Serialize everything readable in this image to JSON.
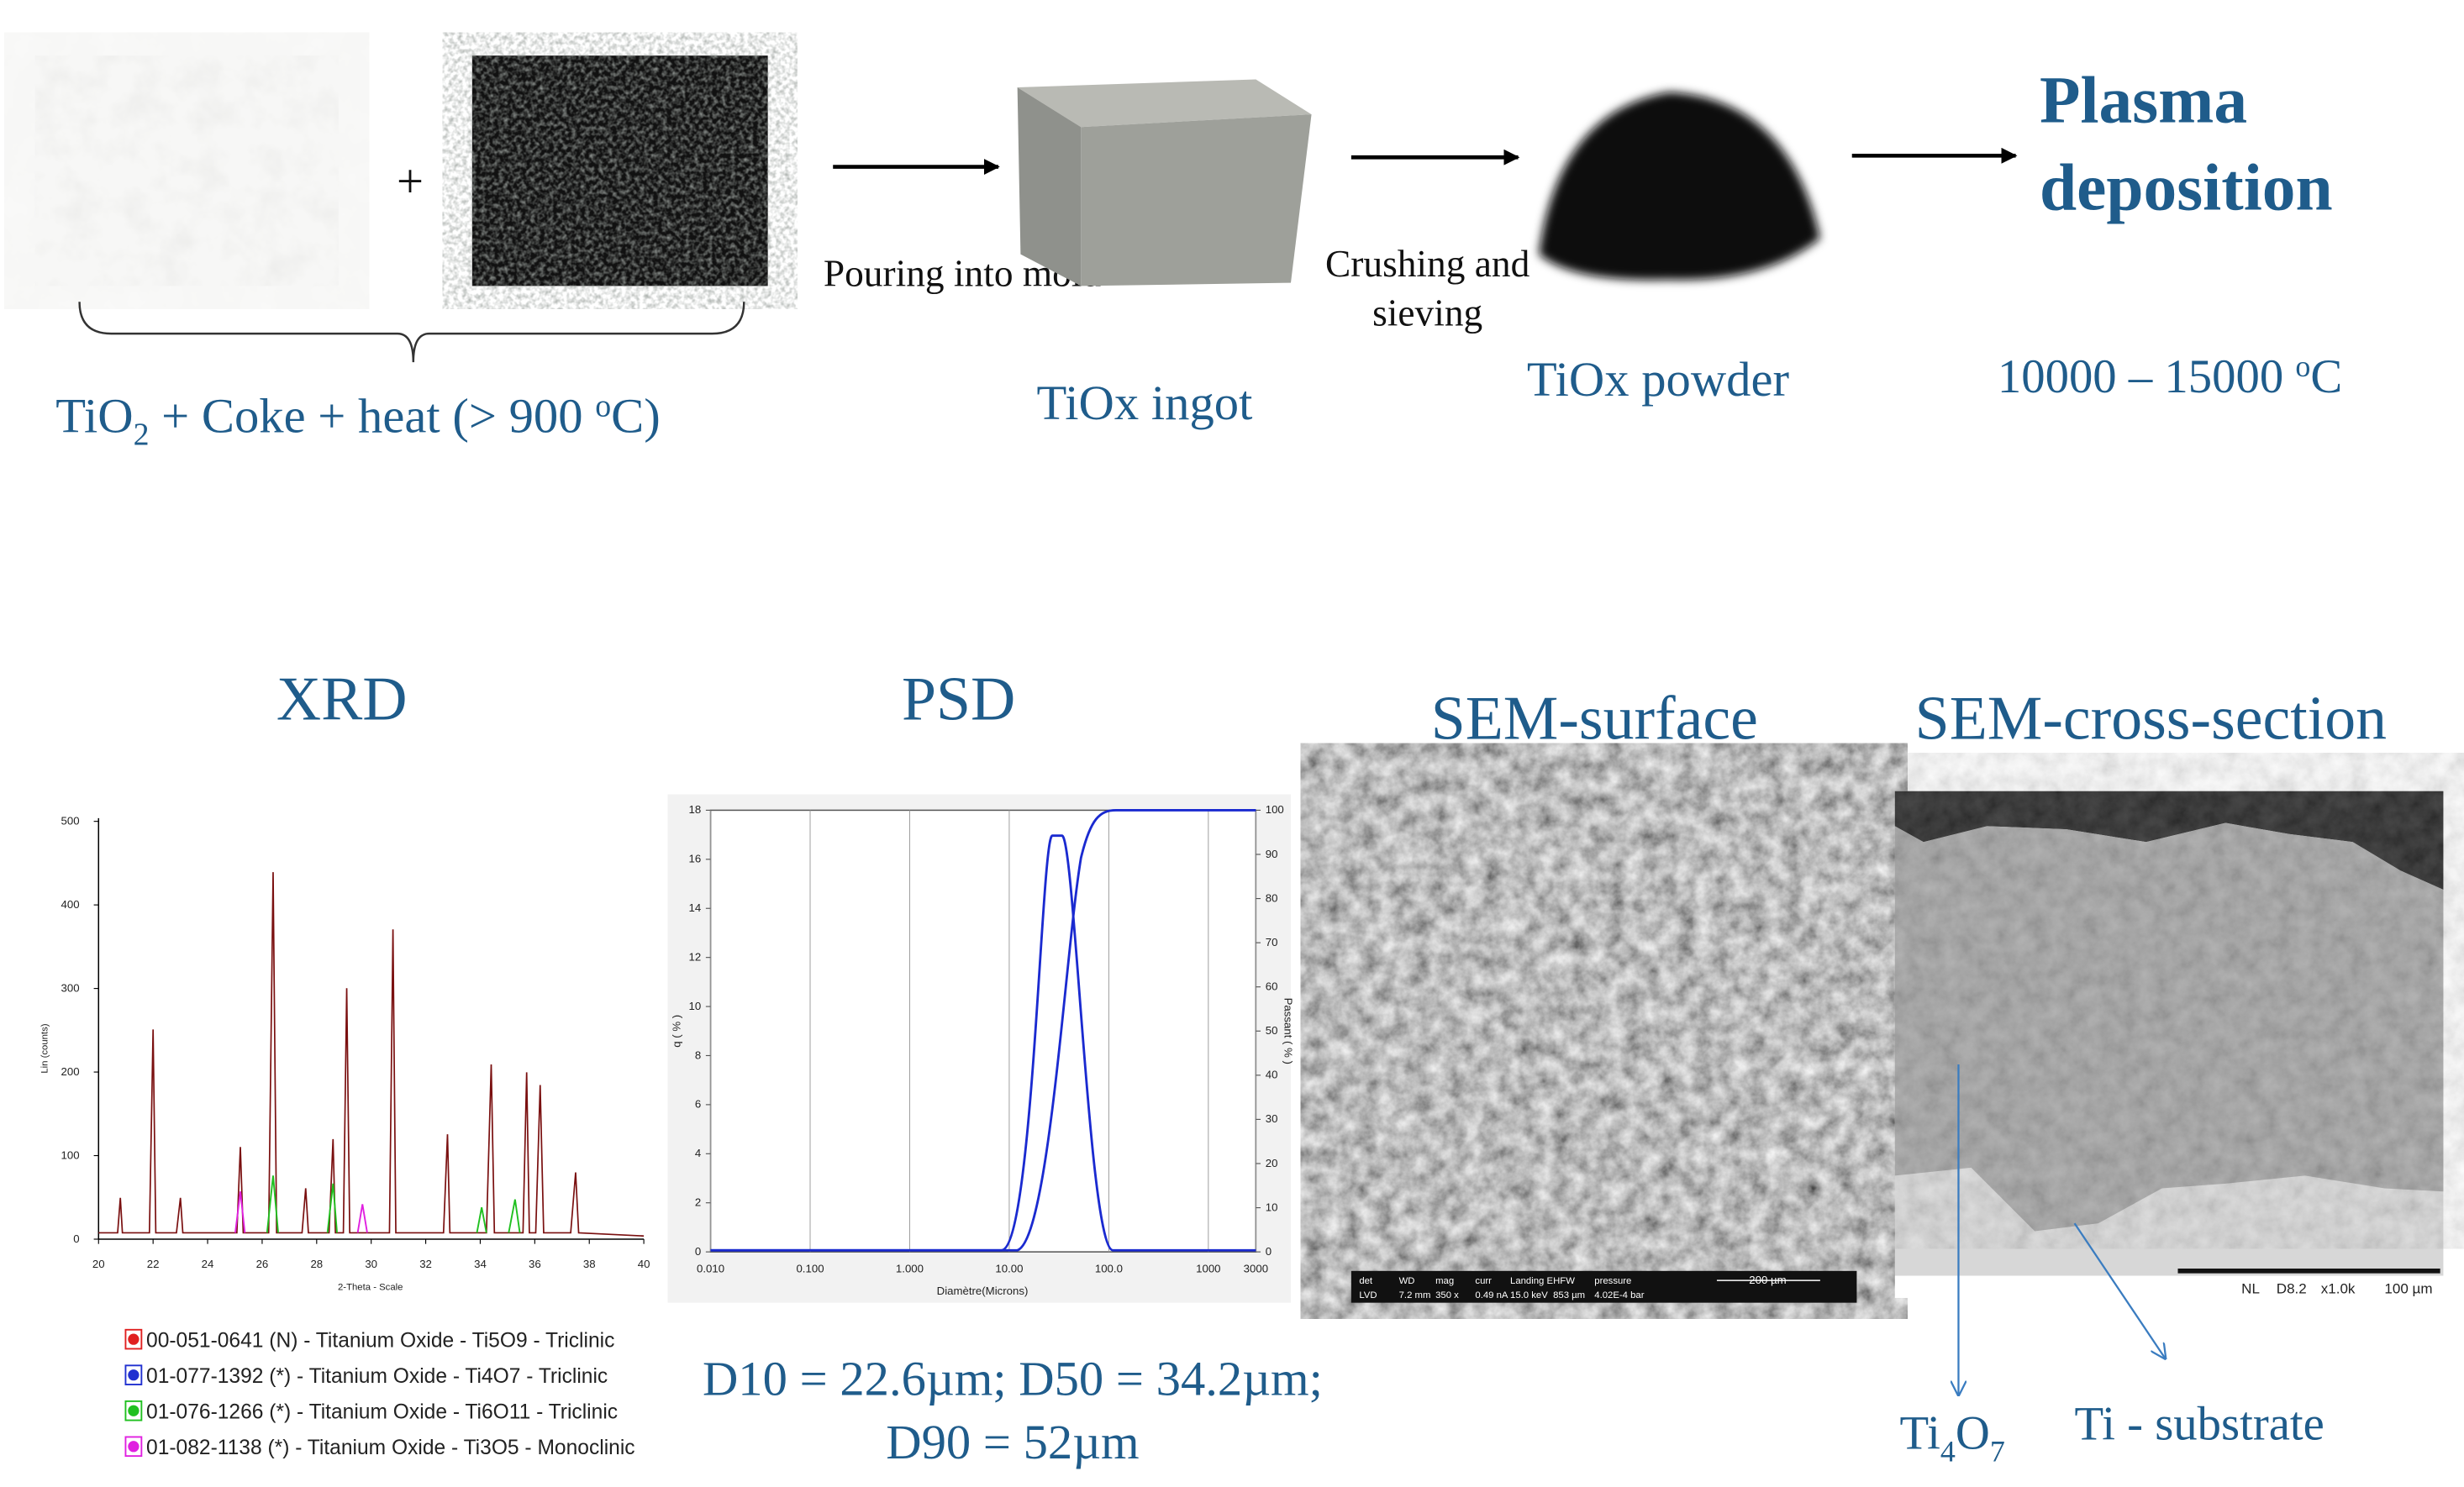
{
  "inputs": {
    "plus": "+",
    "brace_label": {
      "parts": [
        "TiO",
        "2",
        " + Coke + heat (> 900 ",
        "o",
        "C)"
      ]
    }
  },
  "steps": [
    {
      "action": "Pouring into mold",
      "product": "TiOx ingot"
    },
    {
      "action_lines": [
        "Crushing and",
        "sieving"
      ],
      "product": "TiOx powder"
    },
    {
      "title_lines": [
        "Plasma",
        "deposition"
      ],
      "temperature": {
        "parts": [
          "10000 – 15000 ",
          "o",
          "C"
        ]
      }
    }
  ],
  "panels": {
    "xrd": {
      "title": "XRD",
      "y_label": "Lin (counts)",
      "x_label": "2-Theta - Scale",
      "ylim": [
        0,
        500
      ],
      "yticks": [
        0,
        100,
        200,
        300,
        400,
        500
      ],
      "xlim": [
        20,
        40
      ],
      "xticks": [
        20,
        22,
        24,
        26,
        28,
        30,
        32,
        34,
        36,
        38,
        40
      ],
      "legend": [
        {
          "text": "00-051-0641 (N) - Titanium Oxide - Ti5O9 - Triclinic",
          "color": "#e02020"
        },
        {
          "text": "01-077-1392 (*) - Titanium Oxide - Ti4O7 - Triclinic",
          "color": "#2030d0"
        },
        {
          "text": "01-076-1266 (*) - Titanium Oxide - Ti6O11 - Triclinic",
          "color": "#20c020"
        },
        {
          "text": "01-082-1138 (*) - Titanium Oxide - Ti3O5 - Monoclinic",
          "color": "#e020e0"
        }
      ]
    },
    "psd": {
      "title": "PSD",
      "x_label": "Diamètre(Microns)",
      "y_label": "q ( % )",
      "y2_label": "Passant ( % )",
      "ylim": [
        0,
        18
      ],
      "yticks": [
        0,
        2,
        4,
        6,
        8,
        10,
        12,
        14,
        16,
        18
      ],
      "y2lim": [
        0,
        100
      ],
      "y2ticks": [
        0,
        10,
        20,
        30,
        40,
        50,
        60,
        70,
        80,
        90,
        100
      ],
      "log_x": true,
      "xlim": [
        0.01,
        3000
      ],
      "xticks": [
        {
          "value": 0.01,
          "label": "0.010"
        },
        {
          "value": 0.1,
          "label": "0.100"
        },
        {
          "value": 1,
          "label": "1.000"
        },
        {
          "value": 10,
          "label": "10.00"
        },
        {
          "value": 100,
          "label": "100.0"
        },
        {
          "value": 1000,
          "label": "1000"
        },
        {
          "value": 3000,
          "label": "3000"
        }
      ],
      "summary_lines": [
        "D10 = 22.6µm; D50 = 34.2µm;",
        "D90 = 52µm"
      ]
    },
    "sem_surface": {
      "title": "SEM-surface",
      "info_headers": [
        "det",
        "WD",
        "mag",
        "curr",
        "Landing E",
        "HFW",
        "pressure"
      ],
      "info_values": [
        "LVD",
        "7.2 mm",
        "350 x",
        "0.49 nA",
        "15.0 keV",
        "853 µm",
        "4.02E-4 bar"
      ],
      "scale": "200 µm"
    },
    "sem_cross": {
      "title": "SEM-cross-section",
      "bar": [
        "NL",
        "D8.2",
        "x1.0k",
        "100 µm"
      ],
      "layer_label": {
        "parts": [
          "Ti",
          "4",
          "O",
          "7"
        ]
      },
      "substrate_label": "Ti - substrate"
    }
  }
}
